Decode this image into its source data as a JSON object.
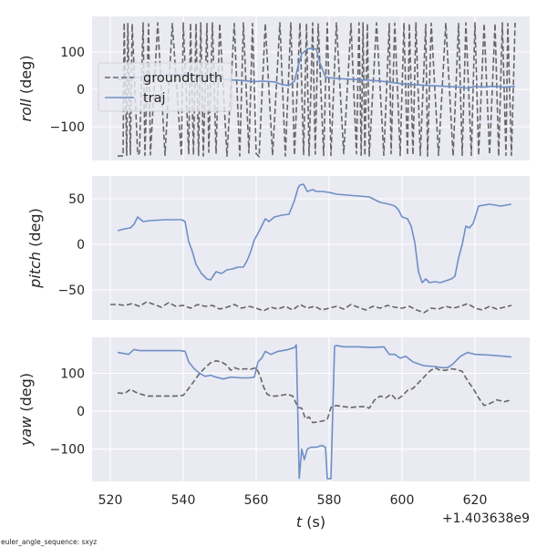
{
  "chart_data": {
    "type": "line",
    "layout": "3 stacked panels, shared x axis",
    "xlabel_var": "t",
    "xlabel_unit": " (s)",
    "x_offset": "+1.403638e9",
    "x_ticks": [
      520,
      540,
      560,
      580,
      600,
      620
    ],
    "x_tick_labels": [
      "520",
      "540",
      "560",
      "580",
      "600",
      "620"
    ],
    "xlim": [
      515,
      635
    ],
    "footnote": "euler_angle_sequence: sxyz",
    "legend": {
      "placement": "upper-left of top panel",
      "entries": [
        {
          "label": "groundtruth",
          "style": "dashed",
          "color": "#666666"
        },
        {
          "label": "traj",
          "style": "solid",
          "color": "#6f8fc6"
        }
      ]
    },
    "colors": {
      "groundtruth": "#666666",
      "traj": "#6f8fc6",
      "panel_bg": "#eaeaf2",
      "grid": "#ffffff"
    },
    "panels": [
      {
        "name": "roll",
        "ylabel_var": "roll",
        "ylabel_unit": " (deg)",
        "ylim": [
          -190,
          195
        ],
        "y_ticks": [
          100,
          0,
          -100
        ],
        "y_tick_labels": [
          "100",
          "0",
          "−100"
        ],
        "series": [
          {
            "name": "groundtruth",
            "wrap_threshold": 250,
            "x": [
              522,
              523.5,
              523.8,
              524.5,
              524.8,
              525.5,
              526,
              527.5,
              528,
              529,
              529.5,
              530.5,
              531,
              533,
              535,
              537,
              539.5,
              540,
              541.5,
              542,
              542.8,
              543.5,
              544.2,
              544.8,
              545.5,
              546.5,
              547,
              548,
              549,
              550,
              552,
              554,
              555.5,
              556.5,
              558,
              559,
              560,
              560.8,
              562.5,
              564.5,
              566.5,
              568,
              569.5,
              570.5,
              572,
              573,
              573.8,
              574.5,
              575.5,
              576.2,
              577,
              578.5,
              579.5,
              580.5,
              582,
              584,
              586,
              587.5,
              588.2,
              588.8,
              589.3,
              589.8,
              590.5,
              591,
              593,
              595,
              596.5,
              597,
              598,
              599.5,
              600.5,
              601.5,
              602,
              603,
              603.8,
              605,
              606.5,
              607,
              608,
              610,
              612,
              614,
              615.5,
              616.5,
              617.5,
              619,
              620,
              621,
              622.5,
              624,
              625.5,
              626.5,
              627.5,
              628.5,
              629,
              630,
              631
            ],
            "y": [
              -178,
              -178,
              178,
              -176,
              176,
              -174,
              175,
              -175,
              -170,
              178,
              -176,
              175,
              -175,
              178,
              -176,
              176,
              -178,
              178,
              -172,
              177,
              -175,
              176,
              -176,
              178,
              -178,
              176,
              -168,
              178,
              -172,
              176,
              -178,
              176,
              -178,
              178,
              -170,
              176,
              -172,
              -180,
              176,
              -176,
              178,
              -178,
              178,
              -176,
              178,
              -174,
              176,
              -177,
              178,
              -173,
              175,
              -176,
              178,
              -176,
              178,
              -172,
              176,
              -172,
              178,
              -176,
              178,
              -177,
              176,
              -178,
              178,
              -176,
              176,
              -172,
              177,
              -177,
              178,
              -176,
              176,
              -175,
              178,
              -176,
              174,
              -178,
              177,
              -176,
              178,
              -178,
              176,
              -176,
              178,
              -176,
              178,
              -176,
              176,
              -174,
              176,
              -178,
              178,
              -176,
              176,
              -176,
              178
            ]
          },
          {
            "name": "traj",
            "wrap_threshold": 250,
            "x": [
              522,
              525,
              528,
              531,
              535,
              538,
              541,
              544,
              547,
              550,
              553,
              556,
              559,
              562,
              565,
              567,
              569,
              570.5,
              571.5,
              572.5,
              574,
              575.5,
              576.5,
              577.5,
              579,
              581,
              584,
              588,
              592,
              596,
              600,
              604,
              608,
              612,
              616,
              618,
              620,
              622,
              625,
              628,
              631
            ],
            "y": [
              26,
              28,
              33,
              36,
              38,
              40,
              40,
              38,
              33,
              28,
              25,
              24,
              21,
              22,
              20,
              13,
              10,
              22,
              62,
              95,
              108,
              110,
              107,
              70,
              33,
              30,
              28,
              26,
              24,
              20,
              15,
              12,
              10,
              8,
              6,
              3,
              8,
              6,
              8,
              6,
              8
            ]
          }
        ]
      },
      {
        "name": "pitch",
        "ylabel_var": "pitch",
        "ylabel_unit": " (deg)",
        "ylim": [
          -83,
          75
        ],
        "y_ticks": [
          50,
          0,
          -50
        ],
        "y_tick_labels": [
          "50",
          "0",
          "−50"
        ],
        "series": [
          {
            "name": "groundtruth",
            "wrap_threshold": 0,
            "x": [
              520,
              522,
              524,
              526,
              528,
              530,
              532,
              534,
              536,
              538,
              540,
              542,
              544,
              546,
              548,
              550,
              552,
              554,
              556,
              558,
              560,
              562,
              564,
              566,
              568,
              570,
              572,
              574,
              576,
              578,
              580,
              582,
              584,
              586,
              588,
              590,
              592,
              594,
              596,
              598,
              600,
              602,
              604,
              606,
              608,
              610,
              612,
              614,
              616,
              618,
              620,
              622,
              624,
              626,
              628,
              630
            ],
            "y": [
              -66,
              -66,
              -67,
              -65,
              -68,
              -63,
              -66,
              -69,
              -64,
              -68,
              -67,
              -70,
              -66,
              -68,
              -67,
              -71,
              -69,
              -66,
              -70,
              -68,
              -70,
              -73,
              -69,
              -71,
              -68,
              -72,
              -66,
              -70,
              -68,
              -72,
              -70,
              -68,
              -71,
              -66,
              -69,
              -72,
              -68,
              -70,
              -67,
              -69,
              -70,
              -68,
              -72,
              -75,
              -70,
              -71,
              -68,
              -70,
              -68,
              -65,
              -70,
              -72,
              -68,
              -71,
              -69,
              -67
            ]
          },
          {
            "name": "traj",
            "wrap_threshold": 0,
            "x": [
              522,
              524,
              525.5,
              526.5,
              527.5,
              529,
              531,
              535,
              538,
              539.5,
              540.5,
              541.5,
              542.5,
              543.5,
              545,
              546.5,
              547.5,
              549,
              550.5,
              552,
              553.5,
              555,
              556.5,
              557.5,
              558.5,
              559.5,
              560.5,
              561.5,
              562.5,
              563.5,
              565,
              567,
              569,
              570.5,
              571.5,
              572,
              573,
              574,
              575.5,
              576.5,
              578,
              580,
              582,
              585,
              588,
              591,
              594,
              596.5,
              598,
              599,
              600,
              601.5,
              602.5,
              603.5,
              604.5,
              605.5,
              606.5,
              607.5,
              609,
              610.5,
              612,
              613.5,
              614.5,
              615.5,
              616.5,
              617.5,
              618.5,
              619.5,
              621,
              624,
              627,
              630
            ],
            "y": [
              15,
              17,
              18,
              22,
              30,
              25,
              26,
              27,
              27,
              27,
              25,
              3,
              -8,
              -22,
              -32,
              -38,
              -39,
              -30,
              -32,
              -28,
              -27,
              -25,
              -25,
              -18,
              -8,
              5,
              12,
              20,
              28,
              25,
              30,
              32,
              33,
              48,
              62,
              65,
              66,
              58,
              60,
              58,
              58,
              57,
              55,
              54,
              53,
              52,
              46,
              44,
              42,
              38,
              30,
              28,
              20,
              2,
              -30,
              -42,
              -38,
              -42,
              -41,
              -42,
              -40,
              -38,
              -35,
              -15,
              0,
              20,
              18,
              23,
              42,
              44,
              42,
              44
            ]
          }
        ]
      },
      {
        "name": "yaw",
        "ylabel_var": "yaw",
        "ylabel_unit": " (deg)",
        "ylim": [
          -185,
          195
        ],
        "y_ticks": [
          100,
          0,
          -100
        ],
        "y_tick_labels": [
          "100",
          "0",
          "−100"
        ],
        "series": [
          {
            "name": "groundtruth",
            "wrap_threshold": 250,
            "x": [
              522,
              524,
              525.5,
              527,
              528.5,
              530,
              532,
              534,
              536,
              538,
              540,
              541.5,
              543,
              544.5,
              546,
              547.5,
              549,
              550.5,
              552,
              553,
              554,
              555.5,
              557,
              558.5,
              560,
              561,
              562,
              563,
              564,
              565.5,
              567,
              568.5,
              570,
              571.5,
              572.5,
              573.5,
              574.5,
              575.5,
              577,
              578.5,
              579.5,
              580.5,
              582,
              584,
              586,
              588,
              590,
              591,
              592.5,
              594,
              595.5,
              597,
              598.5,
              600,
              601.5,
              603,
              604.5,
              606,
              607.5,
              609,
              610.5,
              612,
              613.5,
              615,
              616.5,
              618,
              619.5,
              621,
              622.5,
              624,
              626,
              628,
              630
            ],
            "y": [
              48,
              47,
              58,
              50,
              45,
              40,
              40,
              40,
              40,
              40,
              42,
              60,
              80,
              100,
              115,
              128,
              133,
              130,
              121,
              108,
              115,
              110,
              112,
              111,
              115,
              95,
              65,
              45,
              40,
              40,
              42,
              45,
              40,
              10,
              8,
              -20,
              -15,
              -30,
              -28,
              -25,
              -22,
              10,
              15,
              12,
              10,
              12,
              12,
              8,
              30,
              40,
              35,
              45,
              30,
              40,
              55,
              60,
              75,
              90,
              105,
              115,
              108,
              108,
              112,
              110,
              105,
              80,
              60,
              35,
              15,
              20,
              30,
              25,
              30
            ]
          },
          {
            "name": "traj",
            "wrap_threshold": 250,
            "x": [
              522,
              524,
              525,
              526.5,
              528,
              532,
              536,
              539,
              540.5,
              541.5,
              543,
              544.5,
              546,
              547.5,
              549,
              551,
              553,
              556,
              558,
              559.5,
              560.5,
              561.5,
              562.5,
              564,
              566,
              568.5,
              570.5,
              571,
              571.8,
              572.5,
              573.2,
              574,
              575,
              576.5,
              578,
              579,
              579.5,
              580.5,
              581.5,
              582,
              584,
              588,
              592,
              595,
              596.5,
              598,
              599.5,
              601,
              603,
              606,
              609,
              611,
              612.5,
              614,
              616,
              618,
              620,
              624,
              628,
              630
            ],
            "y": [
              155,
              152,
              150,
              163,
              160,
              160,
              160,
              160,
              158,
              130,
              112,
              100,
              92,
              95,
              90,
              85,
              90,
              88,
              88,
              90,
              130,
              140,
              158,
              150,
              158,
              162,
              168,
              175,
              -177,
              -100,
              -128,
              -100,
              -95,
              -95,
              -90,
              -95,
              -178,
              -178,
              172,
              173,
              170,
              170,
              168,
              170,
              150,
              150,
              140,
              145,
              130,
              120,
              118,
              115,
              115,
              125,
              145,
              155,
              150,
              148,
              145,
              143
            ]
          }
        ]
      }
    ]
  }
}
